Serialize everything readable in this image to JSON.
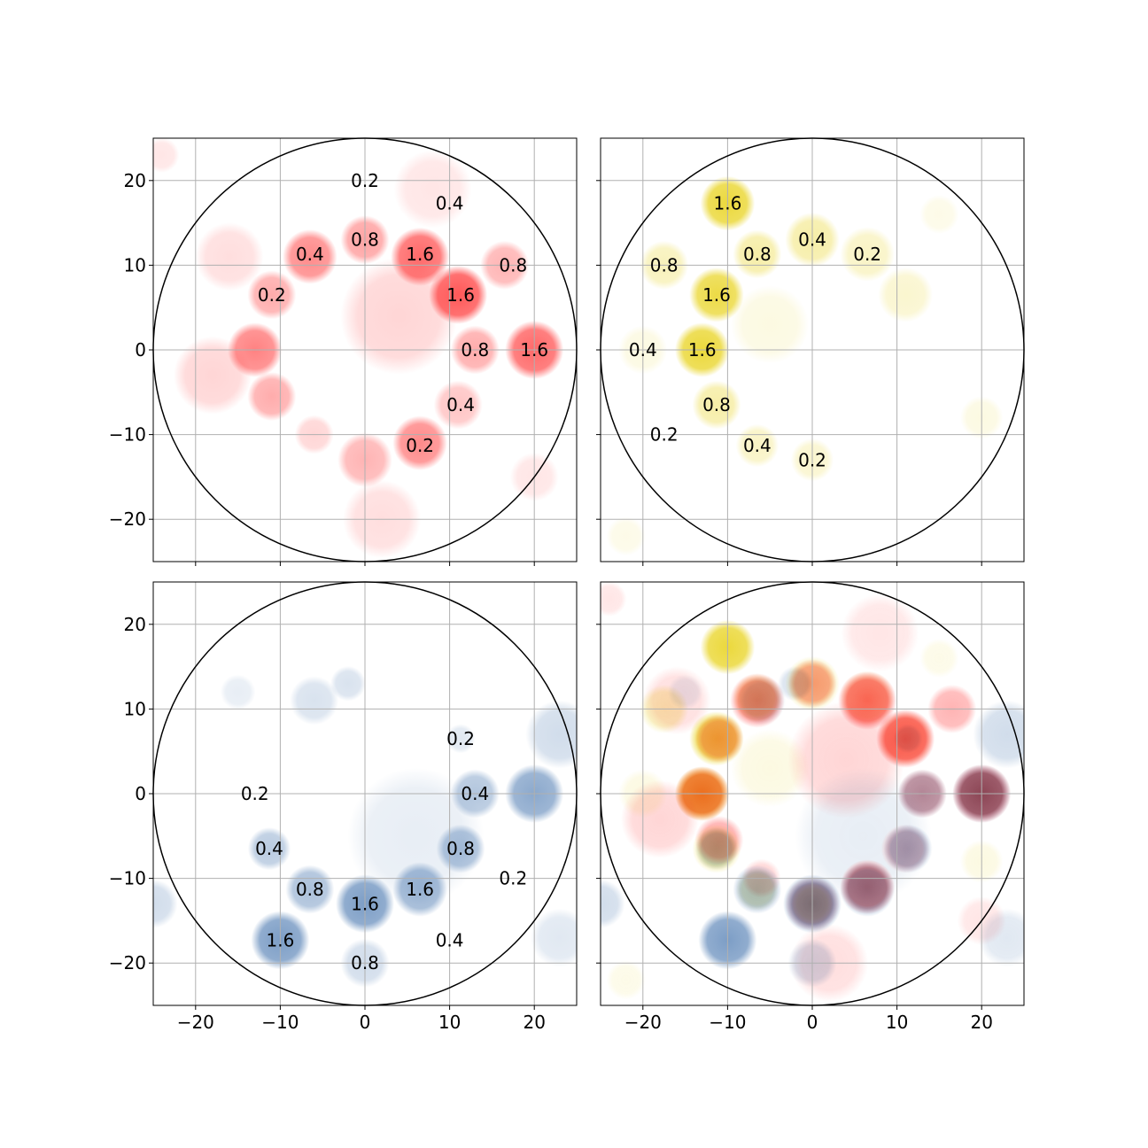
{
  "chart_data": [
    {
      "type": "heatmap",
      "name": "red",
      "color": "#ff3b3b",
      "xlim": [
        -25,
        25
      ],
      "ylim": [
        -25,
        25
      ],
      "x_ticks": [
        -20,
        -10,
        0,
        10,
        20
      ],
      "y_ticks": [
        -20,
        -10,
        0,
        10,
        20
      ],
      "x_tick_labels": [
        "−20",
        "−10",
        "0",
        "10",
        "20"
      ],
      "y_tick_labels": [
        "−20",
        "−10",
        "0",
        "10",
        "20"
      ],
      "show_x_tick_labels": false,
      "show_y_tick_labels": true,
      "circle_radius": 25,
      "grid": true,
      "blobs": [
        {
          "x": 0,
          "y": 13,
          "r": 2.5,
          "v": 0.55
        },
        {
          "x": -6.5,
          "y": 11,
          "r": 2.8,
          "v": 0.7
        },
        {
          "x": 6.5,
          "y": 11,
          "r": 3.0,
          "v": 0.9
        },
        {
          "x": 11,
          "y": 6.5,
          "r": 3.0,
          "v": 1.0
        },
        {
          "x": 16.5,
          "y": 10,
          "r": 2.5,
          "v": 0.45
        },
        {
          "x": -11,
          "y": 6.5,
          "r": 2.5,
          "v": 0.5
        },
        {
          "x": -13,
          "y": 0,
          "r": 2.8,
          "v": 0.75
        },
        {
          "x": 13,
          "y": 0,
          "r": 2.5,
          "v": 0.5
        },
        {
          "x": 20,
          "y": 0,
          "r": 3.0,
          "v": 0.9
        },
        {
          "x": 11,
          "y": -6.5,
          "r": 2.5,
          "v": 0.35
        },
        {
          "x": 6.5,
          "y": -11,
          "r": 2.8,
          "v": 0.7
        },
        {
          "x": 0,
          "y": -13,
          "r": 2.8,
          "v": 0.45
        },
        {
          "x": -11,
          "y": -5.5,
          "r": 2.5,
          "v": 0.5
        },
        {
          "x": -6,
          "y": -10,
          "r": 2.0,
          "v": 0.25
        },
        {
          "x": 4,
          "y": 4,
          "r": 6,
          "v": 0.25
        },
        {
          "x": 8,
          "y": 19,
          "r": 4,
          "v": 0.15
        },
        {
          "x": -16,
          "y": 11,
          "r": 3.5,
          "v": 0.2
        },
        {
          "x": -18,
          "y": -3,
          "r": 4,
          "v": 0.25
        },
        {
          "x": 2,
          "y": -20,
          "r": 4,
          "v": 0.2
        },
        {
          "x": 20,
          "y": -15,
          "r": 2.5,
          "v": 0.15
        },
        {
          "x": -24,
          "y": 23,
          "r": 1.8,
          "v": 0.15
        }
      ],
      "labels": [
        {
          "x": 0,
          "y": 20,
          "text": "0.2"
        },
        {
          "x": 10,
          "y": 17.3,
          "text": "0.4"
        },
        {
          "x": 0,
          "y": 13,
          "text": "0.8"
        },
        {
          "x": -6.5,
          "y": 11.3,
          "text": "0.4"
        },
        {
          "x": 6.5,
          "y": 11.3,
          "text": "1.6"
        },
        {
          "x": 17.5,
          "y": 10,
          "text": "0.8"
        },
        {
          "x": -11,
          "y": 6.5,
          "text": "0.2"
        },
        {
          "x": 11.3,
          "y": 6.5,
          "text": "1.6"
        },
        {
          "x": 13,
          "y": 0,
          "text": "0.8"
        },
        {
          "x": 20,
          "y": 0,
          "text": "1.6"
        },
        {
          "x": 11.3,
          "y": -6.5,
          "text": "0.4"
        },
        {
          "x": 6.5,
          "y": -11.3,
          "text": "0.2"
        }
      ]
    },
    {
      "type": "heatmap",
      "name": "yellow",
      "color": "#e8d21a",
      "xlim": [
        -25,
        25
      ],
      "ylim": [
        -25,
        25
      ],
      "x_ticks": [
        -20,
        -10,
        0,
        10,
        20
      ],
      "y_ticks": [
        -20,
        -10,
        0,
        10,
        20
      ],
      "x_tick_labels": [
        "−20",
        "−10",
        "0",
        "10",
        "20"
      ],
      "y_tick_labels": [
        "−20",
        "−10",
        "0",
        "10",
        "20"
      ],
      "show_x_tick_labels": false,
      "show_y_tick_labels": false,
      "circle_radius": 25,
      "grid": true,
      "blobs": [
        {
          "x": -10,
          "y": 17.3,
          "r": 2.8,
          "v": 1.0
        },
        {
          "x": 0,
          "y": 13,
          "r": 2.8,
          "v": 0.45
        },
        {
          "x": 6.5,
          "y": 11.3,
          "r": 2.8,
          "v": 0.3
        },
        {
          "x": -6.5,
          "y": 11.3,
          "r": 2.5,
          "v": 0.45
        },
        {
          "x": -17.5,
          "y": 10,
          "r": 2.5,
          "v": 0.35
        },
        {
          "x": -11.3,
          "y": 6.5,
          "r": 2.8,
          "v": 0.95
        },
        {
          "x": -13,
          "y": 0,
          "r": 2.8,
          "v": 1.0
        },
        {
          "x": -11.3,
          "y": -6.5,
          "r": 2.5,
          "v": 0.45
        },
        {
          "x": -6.5,
          "y": -11.3,
          "r": 2.2,
          "v": 0.3
        },
        {
          "x": 0,
          "y": -13,
          "r": 2.2,
          "v": 0.25
        },
        {
          "x": -20,
          "y": 0,
          "r": 2.5,
          "v": 0.15
        },
        {
          "x": 11,
          "y": 6.5,
          "r": 2.8,
          "v": 0.25
        },
        {
          "x": -5,
          "y": 3,
          "r": 4,
          "v": 0.15
        },
        {
          "x": 20,
          "y": -8,
          "r": 2.2,
          "v": 0.15
        },
        {
          "x": 15,
          "y": 16,
          "r": 2.0,
          "v": 0.12
        },
        {
          "x": -22,
          "y": -22,
          "r": 2.0,
          "v": 0.12
        }
      ],
      "labels": [
        {
          "x": -10,
          "y": 17.3,
          "text": "1.6"
        },
        {
          "x": 0,
          "y": 13,
          "text": "0.4"
        },
        {
          "x": 6.5,
          "y": 11.3,
          "text": "0.2"
        },
        {
          "x": -6.5,
          "y": 11.3,
          "text": "0.8"
        },
        {
          "x": -17.5,
          "y": 10,
          "text": "0.8"
        },
        {
          "x": -11.3,
          "y": 6.5,
          "text": "1.6"
        },
        {
          "x": -20,
          "y": 0,
          "text": "0.4"
        },
        {
          "x": -13,
          "y": 0,
          "text": "1.6"
        },
        {
          "x": -11.3,
          "y": -6.5,
          "text": "0.8"
        },
        {
          "x": -17.5,
          "y": -10,
          "text": "0.2"
        },
        {
          "x": -6.5,
          "y": -11.3,
          "text": "0.4"
        },
        {
          "x": 0,
          "y": -13,
          "text": "0.2"
        }
      ]
    },
    {
      "type": "heatmap",
      "name": "blue",
      "color": "#4a78b0",
      "xlim": [
        -25,
        25
      ],
      "ylim": [
        -25,
        25
      ],
      "x_ticks": [
        -20,
        -10,
        0,
        10,
        20
      ],
      "y_ticks": [
        -20,
        -10,
        0,
        10,
        20
      ],
      "x_tick_labels": [
        "−20",
        "−10",
        "0",
        "10",
        "20"
      ],
      "y_tick_labels": [
        "−20",
        "−10",
        "0",
        "10",
        "20"
      ],
      "show_x_tick_labels": true,
      "show_y_tick_labels": true,
      "circle_radius": 25,
      "grid": true,
      "blobs": [
        {
          "x": 20,
          "y": 0,
          "r": 3.0,
          "v": 0.75
        },
        {
          "x": 13,
          "y": 0,
          "r": 2.5,
          "v": 0.5
        },
        {
          "x": 11.3,
          "y": -6.5,
          "r": 2.5,
          "v": 0.55
        },
        {
          "x": 6.5,
          "y": -11.3,
          "r": 2.8,
          "v": 0.65
        },
        {
          "x": 0,
          "y": -13,
          "r": 3.0,
          "v": 0.85
        },
        {
          "x": -6.5,
          "y": -11.3,
          "r": 2.5,
          "v": 0.55
        },
        {
          "x": -11.3,
          "y": -6.5,
          "r": 2.2,
          "v": 0.45
        },
        {
          "x": -10,
          "y": -17.3,
          "r": 3.0,
          "v": 0.85
        },
        {
          "x": 0,
          "y": -20,
          "r": 2.5,
          "v": 0.3
        },
        {
          "x": 11.3,
          "y": 6.5,
          "r": 1.5,
          "v": 0.2
        },
        {
          "x": -6,
          "y": 11,
          "r": 2.5,
          "v": 0.25
        },
        {
          "x": -2,
          "y": 13,
          "r": 1.8,
          "v": 0.25
        },
        {
          "x": 23,
          "y": 7,
          "r": 3.5,
          "v": 0.3
        },
        {
          "x": 6,
          "y": -5,
          "r": 7,
          "v": 0.15
        },
        {
          "x": -25,
          "y": -13,
          "r": 2.5,
          "v": 0.3
        },
        {
          "x": 23,
          "y": -17,
          "r": 3,
          "v": 0.2
        },
        {
          "x": -15,
          "y": 12,
          "r": 1.8,
          "v": 0.15
        }
      ],
      "labels": [
        {
          "x": 11.3,
          "y": 6.5,
          "text": "0.2"
        },
        {
          "x": -13,
          "y": 0,
          "text": "0.2"
        },
        {
          "x": 13,
          "y": 0,
          "text": "0.4"
        },
        {
          "x": -11.3,
          "y": -6.5,
          "text": "0.4"
        },
        {
          "x": 11.3,
          "y": -6.5,
          "text": "0.8"
        },
        {
          "x": -6.5,
          "y": -11.3,
          "text": "0.8"
        },
        {
          "x": 6.5,
          "y": -11.3,
          "text": "1.6"
        },
        {
          "x": 17.5,
          "y": -10,
          "text": "0.2"
        },
        {
          "x": 0,
          "y": -13,
          "text": "1.6"
        },
        {
          "x": -10,
          "y": -17.3,
          "text": "1.6"
        },
        {
          "x": 10,
          "y": -17.3,
          "text": "0.4"
        },
        {
          "x": 0,
          "y": -20,
          "text": "0.8"
        }
      ]
    },
    {
      "type": "heatmap",
      "name": "combined",
      "composite_of": [
        "red",
        "yellow",
        "blue"
      ],
      "xlim": [
        -25,
        25
      ],
      "ylim": [
        -25,
        25
      ],
      "x_ticks": [
        -20,
        -10,
        0,
        10,
        20
      ],
      "y_ticks": [
        -20,
        -10,
        0,
        10,
        20
      ],
      "x_tick_labels": [
        "−20",
        "−10",
        "0",
        "10",
        "20"
      ],
      "y_tick_labels": [
        "−20",
        "−10",
        "0",
        "10",
        "20"
      ],
      "show_x_tick_labels": true,
      "show_y_tick_labels": false,
      "circle_radius": 25,
      "grid": true,
      "labels": []
    }
  ]
}
